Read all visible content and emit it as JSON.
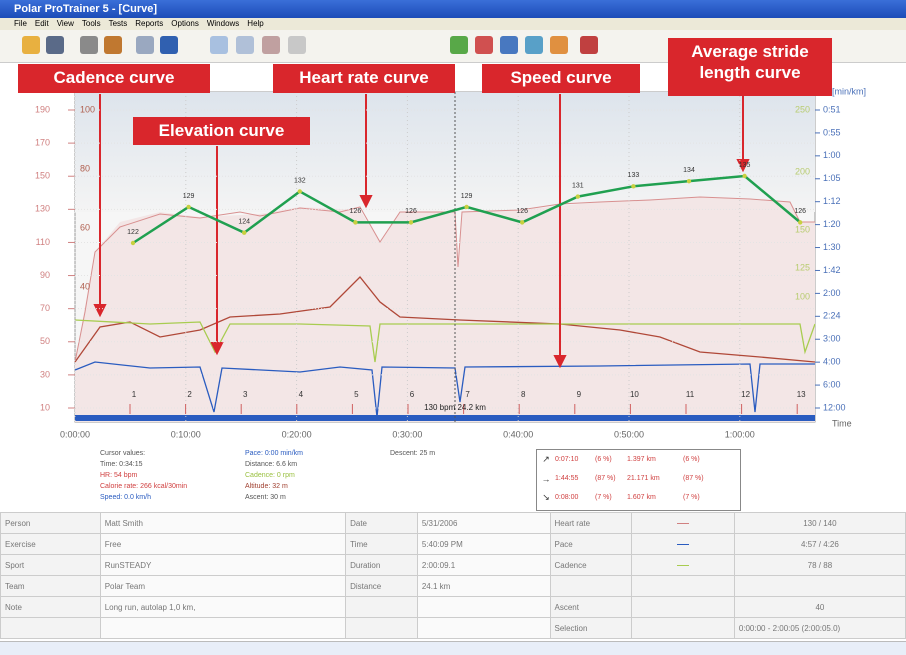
{
  "window": {
    "title": "Polar ProTrainer 5 - [Curve]"
  },
  "menu": [
    "File",
    "Edit",
    "View",
    "Tools",
    "Tests",
    "Reports",
    "Options",
    "Windows",
    "Help"
  ],
  "callouts": {
    "cadence": "Cadence curve",
    "heart_rate": "Heart rate curve",
    "elevation": "Elevation curve",
    "speed": "Speed curve",
    "stride": "Average stride length curve"
  },
  "chart": {
    "left_ticks": [
      190,
      170,
      150,
      130,
      110,
      90,
      70,
      50,
      30,
      10
    ],
    "inner_left_ticks": [
      100,
      80,
      60,
      40
    ],
    "right_ticks": [
      250,
      200,
      150,
      125,
      100
    ],
    "pace_label": "ce [min/km]",
    "pace_ticks": [
      "0:51",
      "0:55",
      "1:00",
      "1:05",
      "1:12",
      "1:20",
      "1:30",
      "1:42",
      "2:00",
      "2:24",
      "3:00",
      "4:00",
      "6:00",
      "12:00"
    ],
    "time_ticks": [
      "0:00:00",
      "0:10:00",
      "0:20:00",
      "0:30:00",
      "0:40:00",
      "0:50:00",
      "1:00:00"
    ],
    "time_label": "Time",
    "laps": [
      "1",
      "2",
      "3",
      "4",
      "5",
      "6",
      "7",
      "8",
      "9",
      "10",
      "11",
      "12",
      "13"
    ],
    "lap_note": "130 bpm 24.2 km",
    "stride_values": [
      122,
      129,
      124,
      132,
      126,
      126,
      129,
      126,
      131,
      133,
      134,
      135,
      126
    ]
  },
  "cursor": [
    [
      {
        "text": "Cursor values:",
        "color": "#555"
      },
      {
        "text": "Time: 0:34:15",
        "color": "#555"
      },
      {
        "text": "HR: 54 bpm",
        "color": "#d04040"
      },
      {
        "text": "Calorie rate: 266 kcal/30min",
        "color": "#d04040"
      },
      {
        "text": "Speed: 0.0 km/h",
        "color": "#2a5cc0"
      }
    ],
    [
      {
        "text": "Pace: 0:00 min/km",
        "color": "#2a5cc0"
      },
      {
        "text": "Distance: 6.6 km",
        "color": "#555"
      },
      {
        "text": "Cadence: 0 rpm",
        "color": "#9ac040"
      },
      {
        "text": "Altitude: 32 m",
        "color": "#a04030"
      },
      {
        "text": "Ascent: 30 m",
        "color": "#555"
      }
    ],
    [
      {
        "text": "Descent: 25 m",
        "color": "#555"
      }
    ]
  ],
  "zones": [
    [
      "↗",
      "0:07:10",
      "(6 %)",
      "1.397 km",
      "(6 %)"
    ],
    [
      "→",
      "1:44:55",
      "(87 %)",
      "21.171 km",
      "(87 %)"
    ],
    [
      "↘",
      "0:08:00",
      "(7 %)",
      "1.607 km",
      "(7 %)"
    ]
  ],
  "table": [
    [
      "Person",
      "Matt Smith",
      "Date",
      "5/31/2006",
      "Heart rate",
      "130 / 140"
    ],
    [
      "Exercise",
      "Free",
      "Time",
      "5:40:09 PM",
      "Pace",
      "4:57 / 4:26"
    ],
    [
      "Sport",
      "RunSTEADY",
      "Duration",
      "2:00:09.1",
      "Cadence",
      "78 / 88"
    ],
    [
      "Team",
      "Polar Team",
      "Distance",
      "24.1 km",
      null,
      null
    ],
    [
      "Note",
      "Long run, autolap 1,0 km,",
      null,
      null,
      "Ascent",
      "40"
    ],
    [
      null,
      null,
      null,
      null,
      "Selection",
      "0:00:00 - 2:00:05 (2:00:05.0)"
    ]
  ]
}
